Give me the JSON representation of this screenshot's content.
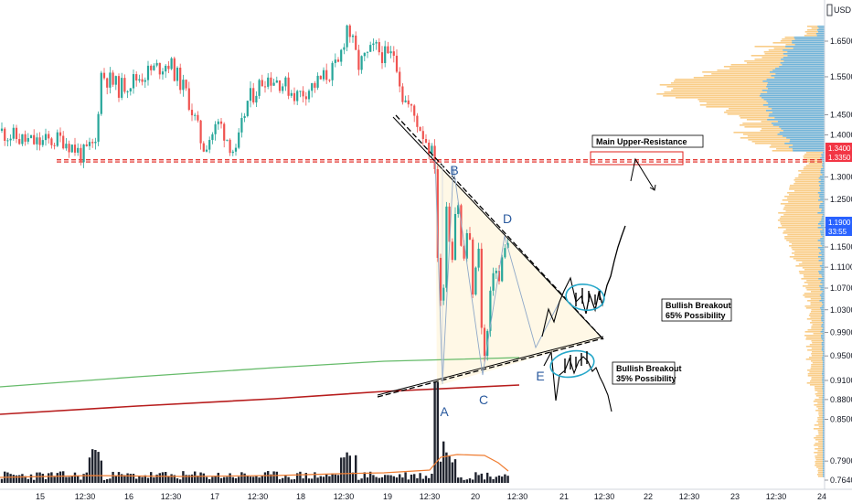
{
  "chart_data": {
    "type": "candlestick",
    "currency": "USD",
    "ylim": [
      0.735,
      1.73
    ],
    "log_scale": true,
    "y_ticks": [
      "1.6500",
      "1.5500",
      "1.4500",
      "1.4000",
      "1.3000",
      "1.2500",
      "1.1900",
      "1.1500",
      "1.1100",
      "1.0700",
      "1.0300",
      "0.9900",
      "0.9500",
      "0.9100",
      "0.8800",
      "0.8500",
      "0.7900",
      "0.7640"
    ],
    "x_ticks": [
      "15",
      "12:30",
      "16",
      "12:30",
      "17",
      "12:30",
      "18",
      "12:30",
      "19",
      "12:30",
      "20",
      "12:30",
      "21",
      "12:30",
      "22",
      "12:30",
      "23",
      "12:30",
      "24"
    ],
    "price_badges": [
      {
        "label": "1.3400",
        "value": 1.34,
        "color": "#f23645"
      },
      {
        "label": "1.3350",
        "value": 1.335,
        "color": "#f23645"
      },
      {
        "label": "1.1900",
        "value": 1.19,
        "color": "#2962ff"
      },
      {
        "label": "33:55",
        "value": 1.17,
        "color": "#2962ff"
      }
    ],
    "points": [
      {
        "label": "A",
        "value": 0.885
      },
      {
        "label": "B",
        "value": 1.295
      },
      {
        "label": "C",
        "value": 0.91
      },
      {
        "label": "D",
        "value": 1.165
      },
      {
        "label": "E",
        "value": 0.935
      }
    ],
    "resistance": {
      "label": "Main Upper-Resistance",
      "value": 1.335
    },
    "scenarios": [
      {
        "title": "Bullish Breakout",
        "subtitle": "65% Possibility"
      },
      {
        "title": "Bullish Breakout",
        "subtitle": "35% Possibility"
      }
    ],
    "colors": {
      "up": "#26a69a",
      "down": "#ef5350",
      "volume": "#1e222d",
      "resistance": "#e0201b",
      "ma_green": "#66bb6a",
      "ma_red": "#b71c1c",
      "volume_ma": "#ef7d32",
      "vp_blue": "#5bafe8",
      "vp_orange": "#f8c06a",
      "ellipse": "#26a7c9"
    }
  }
}
